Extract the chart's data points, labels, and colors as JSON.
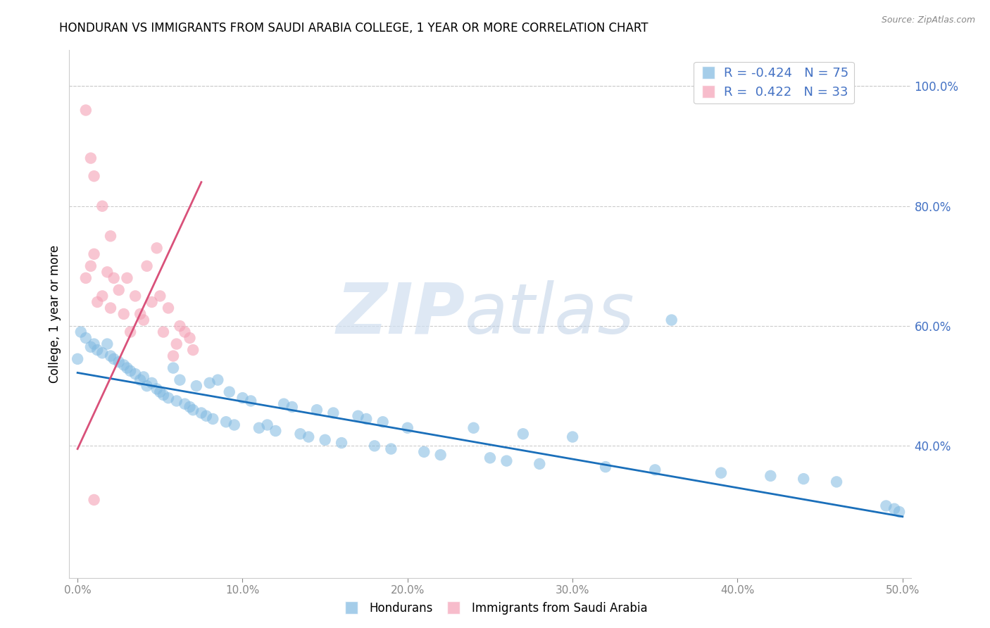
{
  "title": "HONDURAN VS IMMIGRANTS FROM SAUDI ARABIA COLLEGE, 1 YEAR OR MORE CORRELATION CHART",
  "source": "Source: ZipAtlas.com",
  "ylabel": "College, 1 year or more",
  "xlim": [
    -0.005,
    0.505
  ],
  "ylim": [
    0.18,
    1.06
  ],
  "right_yticks": [
    0.4,
    0.6,
    0.8,
    1.0
  ],
  "xticks": [
    0.0,
    0.1,
    0.2,
    0.3,
    0.4,
    0.5
  ],
  "honduran_color": "#7fb8e0",
  "saudi_color": "#f4a0b5",
  "honduran_R": -0.424,
  "honduran_N": 75,
  "saudi_R": 0.422,
  "saudi_N": 33,
  "line_blue": "#1a6fba",
  "line_pink": "#d9517a",
  "watermark_zip": "ZIP",
  "watermark_atlas": "atlas",
  "legend_hondurans": "Hondurans",
  "legend_saudi": "Immigrants from Saudi Arabia",
  "honduran_x": [
    0.002,
    0.005,
    0.008,
    0.01,
    0.012,
    0.015,
    0.018,
    0.02,
    0.022,
    0.025,
    0.028,
    0.03,
    0.032,
    0.035,
    0.038,
    0.04,
    0.042,
    0.045,
    0.048,
    0.05,
    0.052,
    0.055,
    0.058,
    0.06,
    0.062,
    0.065,
    0.068,
    0.07,
    0.072,
    0.075,
    0.078,
    0.08,
    0.082,
    0.085,
    0.09,
    0.092,
    0.095,
    0.1,
    0.105,
    0.11,
    0.115,
    0.12,
    0.125,
    0.13,
    0.135,
    0.14,
    0.145,
    0.15,
    0.155,
    0.16,
    0.17,
    0.175,
    0.18,
    0.185,
    0.19,
    0.2,
    0.21,
    0.22,
    0.24,
    0.25,
    0.26,
    0.27,
    0.28,
    0.3,
    0.32,
    0.35,
    0.36,
    0.39,
    0.42,
    0.44,
    0.46,
    0.49,
    0.495,
    0.498,
    0.0
  ],
  "honduran_y": [
    0.59,
    0.58,
    0.565,
    0.57,
    0.56,
    0.555,
    0.57,
    0.55,
    0.545,
    0.54,
    0.535,
    0.53,
    0.525,
    0.52,
    0.51,
    0.515,
    0.5,
    0.505,
    0.495,
    0.49,
    0.485,
    0.48,
    0.53,
    0.475,
    0.51,
    0.47,
    0.465,
    0.46,
    0.5,
    0.455,
    0.45,
    0.505,
    0.445,
    0.51,
    0.44,
    0.49,
    0.435,
    0.48,
    0.475,
    0.43,
    0.435,
    0.425,
    0.47,
    0.465,
    0.42,
    0.415,
    0.46,
    0.41,
    0.455,
    0.405,
    0.45,
    0.445,
    0.4,
    0.44,
    0.395,
    0.43,
    0.39,
    0.385,
    0.43,
    0.38,
    0.375,
    0.42,
    0.37,
    0.415,
    0.365,
    0.36,
    0.61,
    0.355,
    0.35,
    0.345,
    0.34,
    0.3,
    0.295,
    0.29,
    0.545
  ],
  "saudi_x": [
    0.005,
    0.008,
    0.01,
    0.012,
    0.015,
    0.018,
    0.02,
    0.022,
    0.025,
    0.028,
    0.03,
    0.032,
    0.035,
    0.038,
    0.04,
    0.042,
    0.045,
    0.048,
    0.05,
    0.052,
    0.055,
    0.058,
    0.06,
    0.062,
    0.065,
    0.068,
    0.07,
    0.005,
    0.008,
    0.01,
    0.015,
    0.02,
    0.01
  ],
  "saudi_y": [
    0.68,
    0.7,
    0.72,
    0.64,
    0.65,
    0.69,
    0.63,
    0.68,
    0.66,
    0.62,
    0.68,
    0.59,
    0.65,
    0.62,
    0.61,
    0.7,
    0.64,
    0.73,
    0.65,
    0.59,
    0.63,
    0.55,
    0.57,
    0.6,
    0.59,
    0.58,
    0.56,
    0.96,
    0.88,
    0.85,
    0.8,
    0.75,
    0.31
  ],
  "hon_line_x": [
    0.0,
    0.5
  ],
  "hon_line_y": [
    0.522,
    0.282
  ],
  "saud_line_x": [
    0.0,
    0.075
  ],
  "saud_line_y": [
    0.395,
    0.84
  ]
}
